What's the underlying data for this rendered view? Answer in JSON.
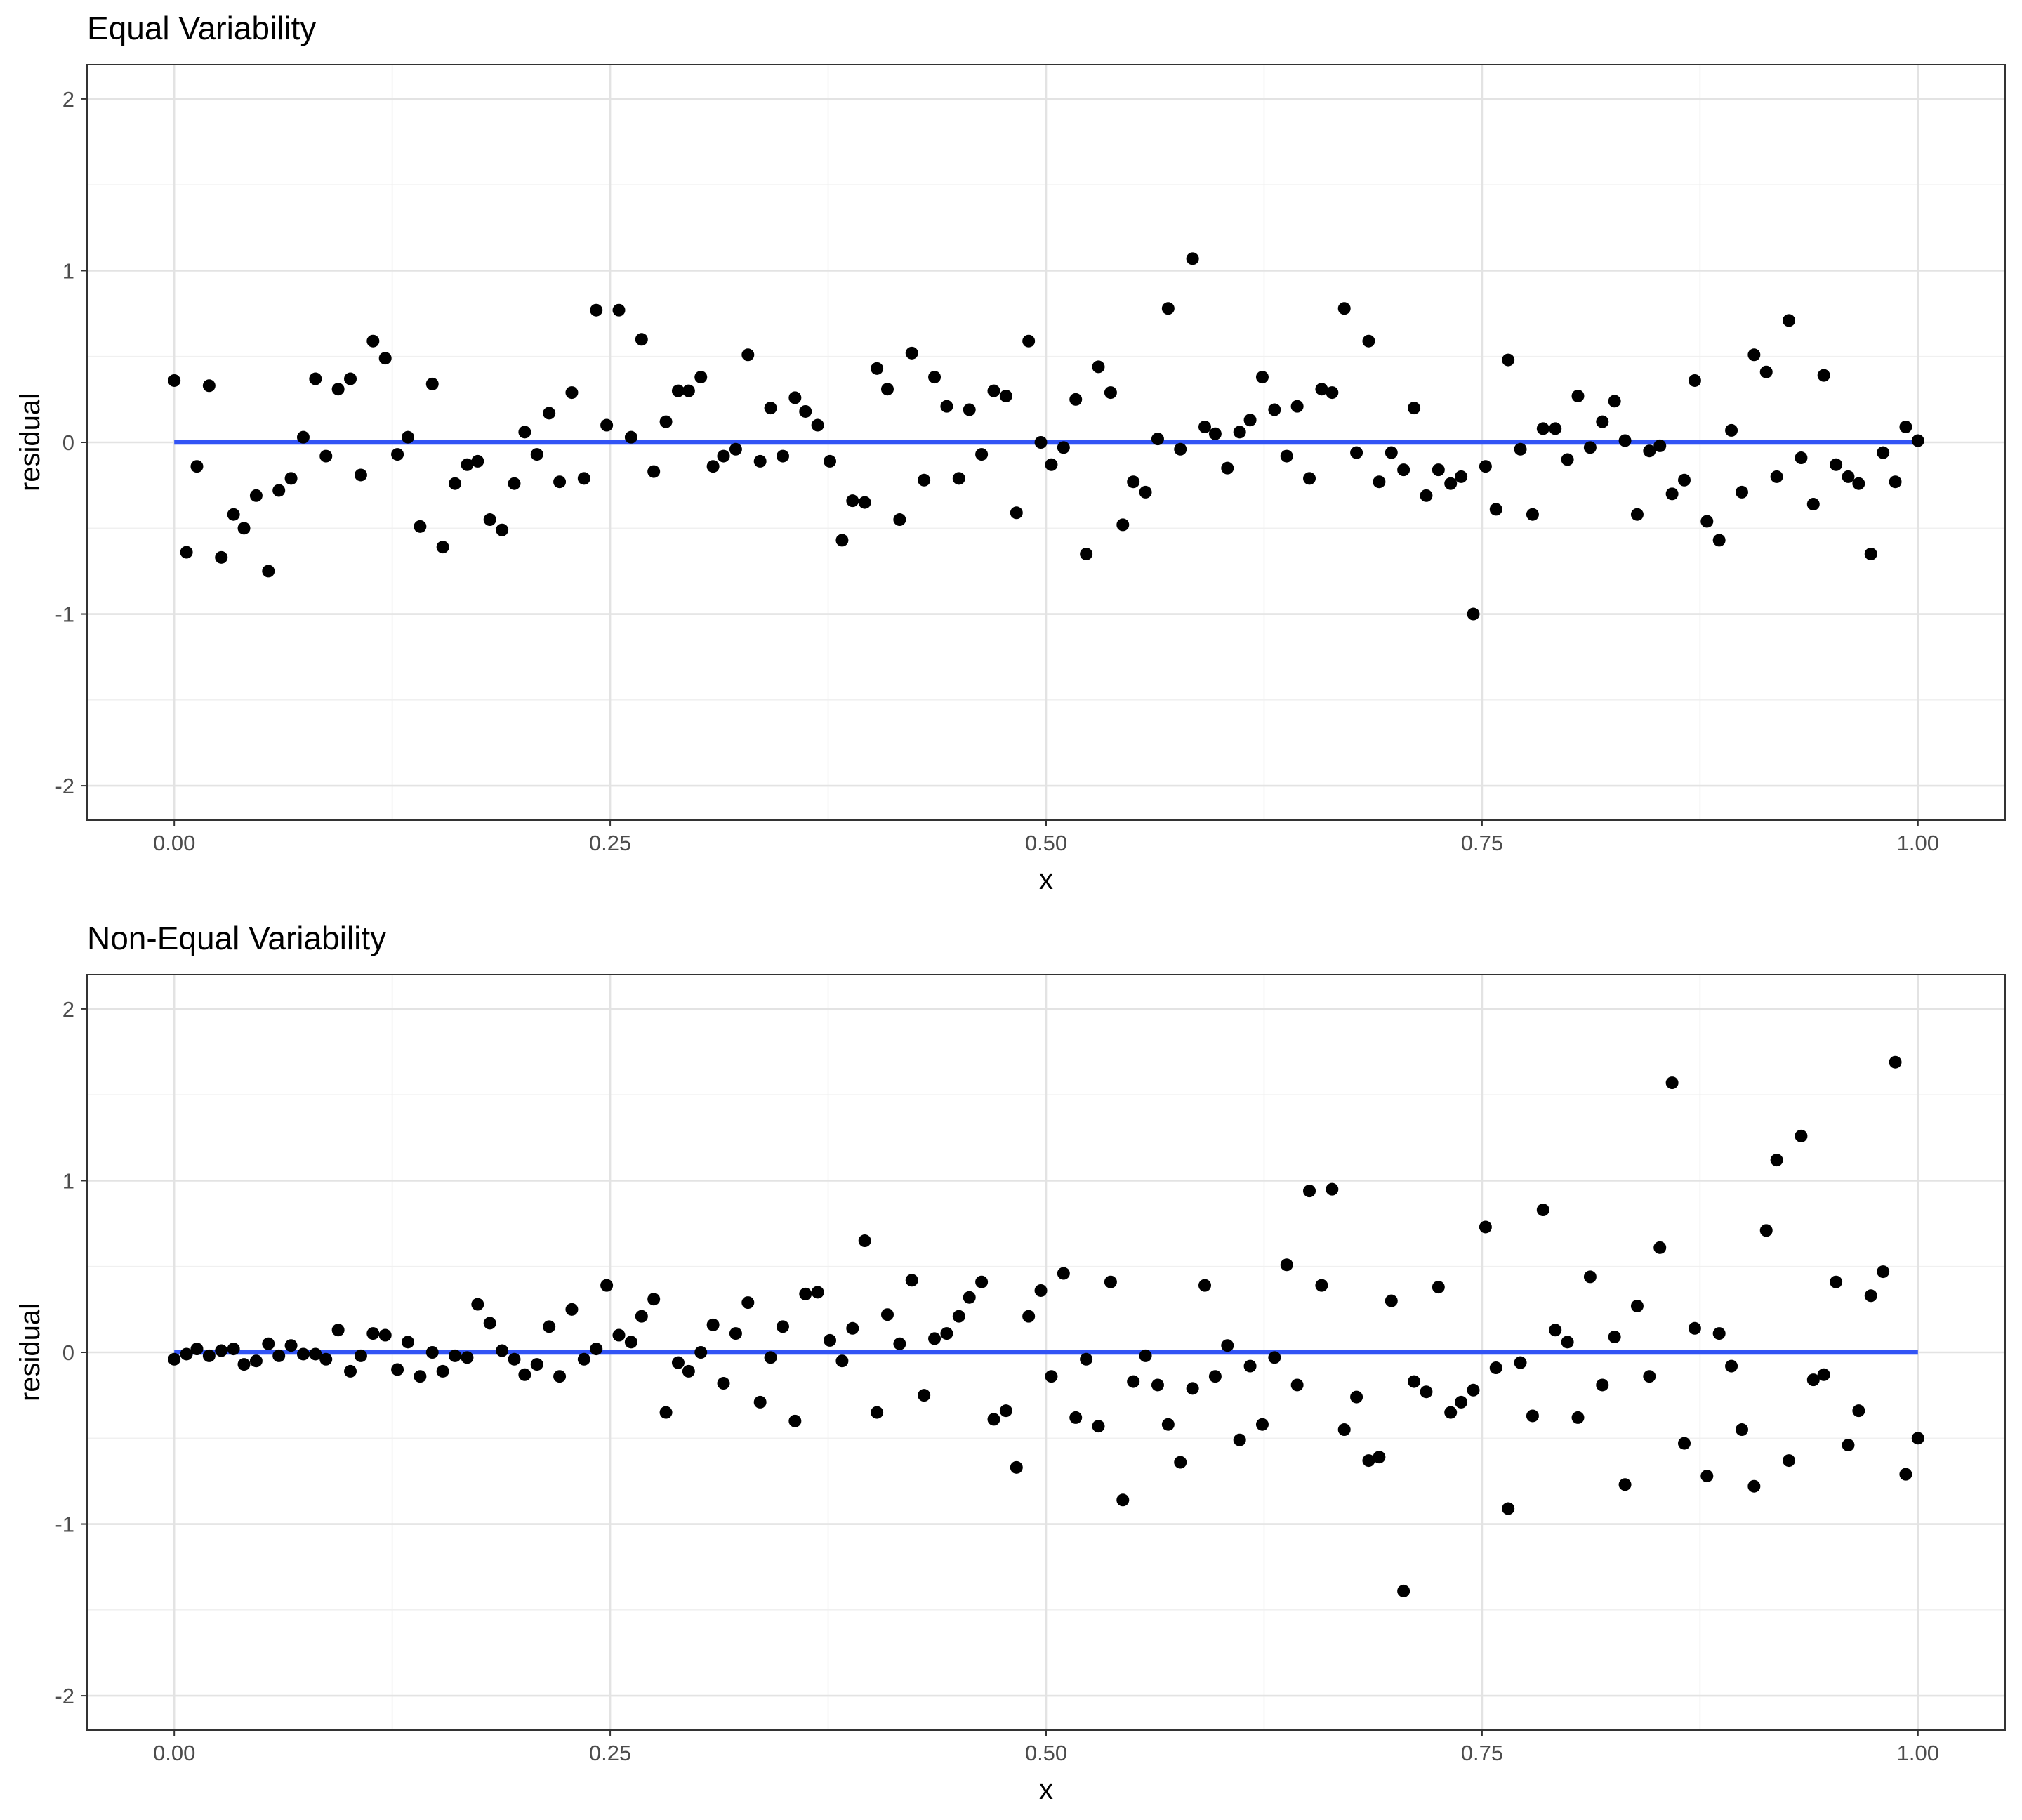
{
  "chart_data": [
    {
      "type": "scatter",
      "title": "Equal Variability",
      "xlabel": "x",
      "ylabel": "residual",
      "xlim": [
        -0.05,
        1.05
      ],
      "ylim": [
        -2.2,
        2.2
      ],
      "xticks": [
        0,
        0.25,
        0.5,
        0.75,
        1
      ],
      "xtick_labels": [
        "0.00",
        "0.25",
        "0.50",
        "0.75",
        "1.00"
      ],
      "yticks": [
        -2,
        -1,
        0,
        1,
        2
      ],
      "ytick_labels": [
        "-2",
        "-1",
        "0",
        "1",
        "2"
      ],
      "grid": true,
      "fit_line": {
        "x": [
          0,
          1
        ],
        "y": [
          0,
          0
        ],
        "color": "#3254f5"
      },
      "series": [
        {
          "x": [
            0.0,
            0.007,
            0.013,
            0.02,
            0.027,
            0.034,
            0.04,
            0.047,
            0.054,
            0.06,
            0.067,
            0.074,
            0.081,
            0.087,
            0.094,
            0.101,
            0.107,
            0.114,
            0.121,
            0.128,
            0.134,
            0.141,
            0.148,
            0.154,
            0.161,
            0.168,
            0.174,
            0.181,
            0.188,
            0.195,
            0.201,
            0.208,
            0.215,
            0.221,
            0.228,
            0.235,
            0.242,
            0.248,
            0.255,
            0.262,
            0.268,
            0.275,
            0.282,
            0.289,
            0.295,
            0.302,
            0.309,
            0.315,
            0.322,
            0.329,
            0.336,
            0.342,
            0.349,
            0.356,
            0.362,
            0.369,
            0.376,
            0.383,
            0.389,
            0.396,
            0.403,
            0.409,
            0.416,
            0.423,
            0.43,
            0.436,
            0.443,
            0.45,
            0.456,
            0.463,
            0.47,
            0.477,
            0.483,
            0.49,
            0.497,
            0.503,
            0.51,
            0.517,
            0.523,
            0.53,
            0.537,
            0.544,
            0.55,
            0.557,
            0.564,
            0.57,
            0.577,
            0.584,
            0.591,
            0.597,
            0.604,
            0.611,
            0.617,
            0.624,
            0.631,
            0.638,
            0.644,
            0.651,
            0.658,
            0.664,
            0.671,
            0.678,
            0.685,
            0.691,
            0.698,
            0.705,
            0.711,
            0.718,
            0.725,
            0.732,
            0.738,
            0.745,
            0.752,
            0.758,
            0.765,
            0.772,
            0.779,
            0.785,
            0.792,
            0.799,
            0.805,
            0.812,
            0.819,
            0.826,
            0.832,
            0.839,
            0.846,
            0.852,
            0.859,
            0.866,
            0.872,
            0.879,
            0.886,
            0.893,
            0.899,
            0.906,
            0.913,
            0.919,
            0.926,
            0.933,
            0.94,
            0.946,
            0.953,
            0.96,
            0.966,
            0.973,
            0.98,
            0.987,
            0.993,
            1.0
          ],
          "y": [
            0.36,
            -0.64,
            -0.14,
            0.33,
            -0.67,
            -0.42,
            -0.5,
            -0.31,
            -0.75,
            -0.28,
            -0.21,
            0.03,
            0.37,
            -0.08,
            0.31,
            0.37,
            -0.19,
            0.59,
            0.49,
            -0.07,
            0.03,
            -0.49,
            0.34,
            -0.61,
            -0.24,
            -0.13,
            -0.11,
            -0.45,
            -0.51,
            -0.24,
            0.06,
            -0.07,
            0.17,
            -0.23,
            0.29,
            -0.21,
            0.77,
            0.1,
            0.77,
            0.03,
            0.6,
            -0.17,
            0.12,
            0.3,
            0.3,
            0.38,
            -0.14,
            -0.08,
            -0.04,
            0.51,
            -0.11,
            0.2,
            -0.08,
            0.26,
            0.18,
            0.1,
            -0.11,
            -0.57,
            -0.34,
            -0.35,
            0.43,
            0.31,
            -0.45,
            0.52,
            -0.22,
            0.38,
            0.21,
            -0.21,
            0.19,
            -0.07,
            0.3,
            0.27,
            -0.41,
            0.59,
            0.0,
            -0.13,
            -0.03,
            0.25,
            -0.65,
            0.44,
            0.29,
            -0.48,
            -0.23,
            -0.29,
            0.02,
            0.78,
            -0.04,
            1.07,
            0.09,
            0.05,
            -0.15,
            0.06,
            0.13,
            0.38,
            0.19,
            -0.08,
            0.21,
            -0.21,
            0.31,
            0.29,
            0.78,
            -0.06,
            0.59,
            -0.23,
            -0.06,
            -0.16,
            0.2,
            -0.31,
            -0.16,
            -0.24,
            -0.2,
            -1.0,
            -0.14,
            -0.39,
            0.48,
            -0.04,
            -0.42,
            0.08,
            0.08,
            -0.1,
            0.27,
            -0.03,
            0.12,
            0.24,
            0.01,
            -0.42,
            -0.05,
            -0.02,
            -0.3,
            -0.22,
            0.36,
            -0.46,
            -0.57,
            0.07,
            -0.29,
            0.51,
            0.41,
            -0.2,
            0.71,
            -0.09,
            -0.36,
            0.39,
            -0.13,
            -0.2,
            -0.24,
            -0.65,
            -0.06,
            -0.23,
            0.09,
            0.01
          ]
        }
      ]
    },
    {
      "type": "scatter",
      "title": "Non-Equal Variability",
      "xlabel": "x",
      "ylabel": "residual",
      "xlim": [
        -0.05,
        1.05
      ],
      "ylim": [
        -2.2,
        2.2
      ],
      "xticks": [
        0,
        0.25,
        0.5,
        0.75,
        1
      ],
      "xtick_labels": [
        "0.00",
        "0.25",
        "0.50",
        "0.75",
        "1.00"
      ],
      "yticks": [
        -2,
        -1,
        0,
        1,
        2
      ],
      "ytick_labels": [
        "-2",
        "-1",
        "0",
        "1",
        "2"
      ],
      "grid": true,
      "fit_line": {
        "x": [
          0,
          1
        ],
        "y": [
          0,
          0
        ],
        "color": "#3254f5"
      },
      "series": [
        {
          "x": [
            0.0,
            0.007,
            0.013,
            0.02,
            0.027,
            0.034,
            0.04,
            0.047,
            0.054,
            0.06,
            0.067,
            0.074,
            0.081,
            0.087,
            0.094,
            0.101,
            0.107,
            0.114,
            0.121,
            0.128,
            0.134,
            0.141,
            0.148,
            0.154,
            0.161,
            0.168,
            0.174,
            0.181,
            0.188,
            0.195,
            0.201,
            0.208,
            0.215,
            0.221,
            0.228,
            0.235,
            0.242,
            0.248,
            0.255,
            0.262,
            0.268,
            0.275,
            0.282,
            0.289,
            0.295,
            0.302,
            0.309,
            0.315,
            0.322,
            0.329,
            0.336,
            0.342,
            0.349,
            0.356,
            0.362,
            0.369,
            0.376,
            0.383,
            0.389,
            0.396,
            0.403,
            0.409,
            0.416,
            0.423,
            0.43,
            0.436,
            0.443,
            0.45,
            0.456,
            0.463,
            0.47,
            0.477,
            0.483,
            0.49,
            0.497,
            0.503,
            0.51,
            0.517,
            0.523,
            0.53,
            0.537,
            0.544,
            0.55,
            0.557,
            0.564,
            0.57,
            0.577,
            0.584,
            0.591,
            0.597,
            0.604,
            0.611,
            0.617,
            0.624,
            0.631,
            0.638,
            0.644,
            0.651,
            0.658,
            0.664,
            0.671,
            0.678,
            0.685,
            0.691,
            0.698,
            0.705,
            0.711,
            0.718,
            0.725,
            0.732,
            0.738,
            0.745,
            0.752,
            0.758,
            0.765,
            0.772,
            0.779,
            0.785,
            0.792,
            0.799,
            0.805,
            0.812,
            0.819,
            0.826,
            0.832,
            0.839,
            0.846,
            0.852,
            0.859,
            0.866,
            0.872,
            0.879,
            0.886,
            0.893,
            0.899,
            0.906,
            0.913,
            0.919,
            0.926,
            0.933,
            0.94,
            0.946,
            0.953,
            0.96,
            0.966,
            0.973,
            0.98,
            0.987,
            0.993,
            1.0
          ],
          "y": [
            -0.04,
            -0.01,
            0.02,
            -0.02,
            0.01,
            0.02,
            -0.07,
            -0.05,
            0.05,
            -0.02,
            0.04,
            -0.01,
            -0.01,
            -0.04,
            0.13,
            -0.11,
            -0.02,
            0.11,
            0.1,
            -0.1,
            0.06,
            -0.14,
            0.0,
            -0.11,
            -0.02,
            -0.03,
            0.28,
            0.17,
            0.01,
            -0.04,
            -0.13,
            -0.07,
            0.15,
            -0.14,
            0.25,
            -0.04,
            0.02,
            0.39,
            0.1,
            0.06,
            0.21,
            0.31,
            -0.35,
            -0.06,
            -0.11,
            0.0,
            0.16,
            -0.18,
            0.11,
            0.29,
            -0.29,
            -0.03,
            0.15,
            -0.4,
            0.34,
            0.35,
            0.07,
            -0.05,
            0.14,
            0.65,
            -0.35,
            0.22,
            0.05,
            0.42,
            -0.25,
            0.08,
            0.11,
            0.21,
            0.32,
            0.41,
            -0.39,
            -0.34,
            -0.67,
            0.21,
            0.36,
            -0.14,
            0.46,
            -0.38,
            -0.04,
            -0.43,
            0.41,
            -0.86,
            -0.17,
            -0.02,
            -0.19,
            -0.42,
            -0.64,
            -0.21,
            0.39,
            -0.14,
            0.04,
            -0.51,
            -0.08,
            -0.42,
            -0.03,
            0.51,
            -0.19,
            0.94,
            0.39,
            0.95,
            -0.45,
            -0.26,
            -0.63,
            -0.61,
            0.3,
            -1.39,
            -0.17,
            -0.23,
            0.38,
            -0.35,
            -0.29,
            -0.22,
            0.73,
            -0.09,
            -0.91,
            -0.06,
            -0.37,
            0.83,
            0.13,
            0.06,
            -0.38,
            0.44,
            -0.19,
            0.09,
            -0.77,
            0.27,
            -0.14,
            0.61,
            1.57,
            -0.53,
            0.14,
            -0.72,
            0.11,
            -0.08,
            -0.45,
            -0.78,
            0.71,
            1.12,
            -0.63,
            1.26,
            -0.16,
            -0.13,
            0.41,
            -0.54,
            -0.34,
            0.33,
            0.47,
            1.69,
            -0.71,
            -0.5
          ]
        }
      ]
    }
  ]
}
